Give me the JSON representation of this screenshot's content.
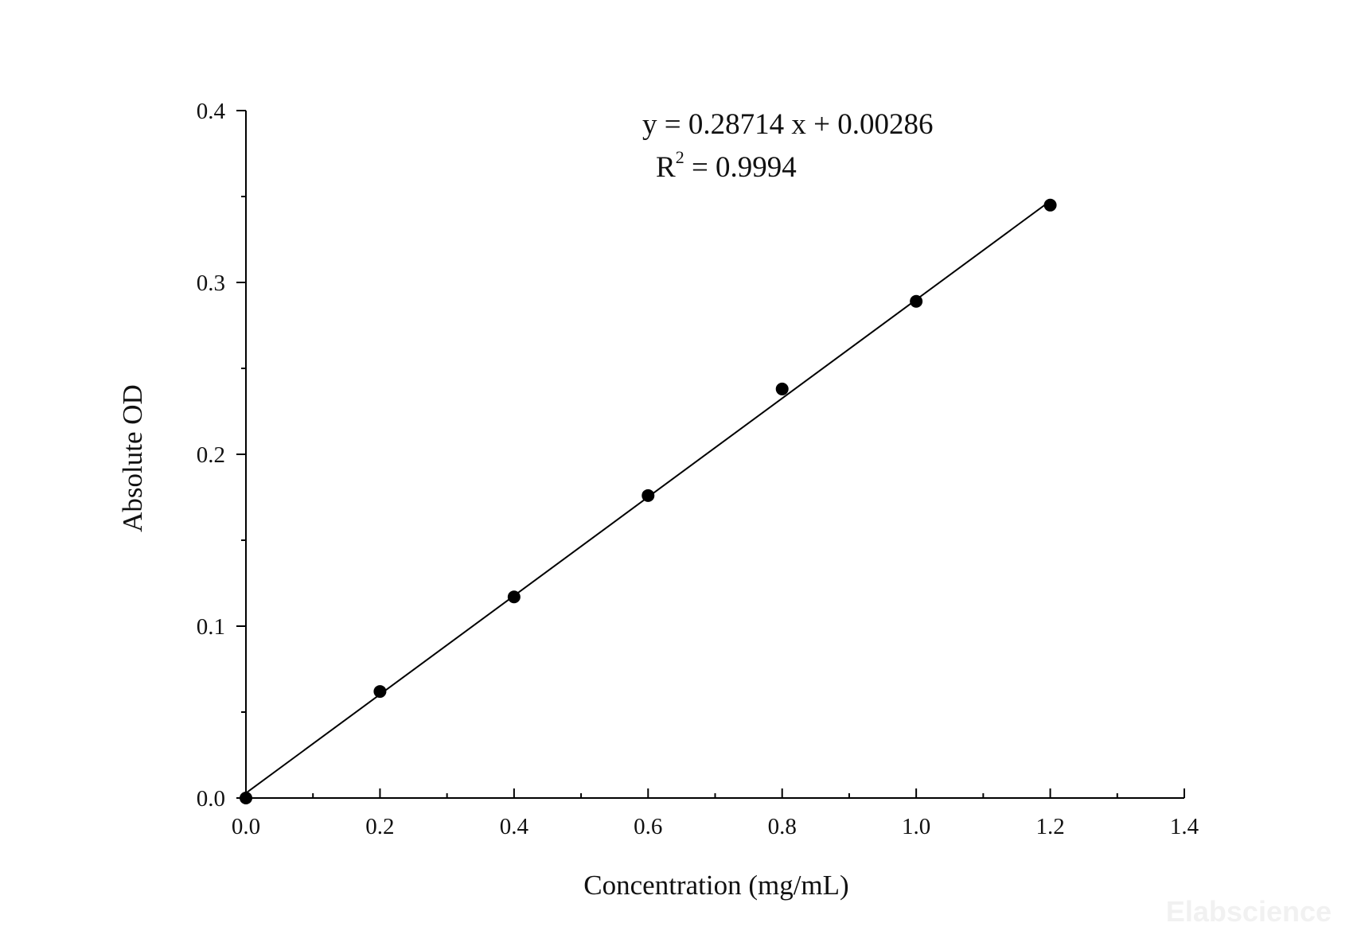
{
  "chart_data": {
    "type": "scatter",
    "title": "",
    "xlabel": "Concentration (mg/mL)",
    "ylabel": "Absolute OD",
    "xlim": [
      0.0,
      1.4
    ],
    "ylim": [
      0.0,
      0.4
    ],
    "xticks": [
      "0.0",
      "0.2",
      "0.4",
      "0.6",
      "0.8",
      "1.0",
      "1.2",
      "1.4"
    ],
    "yticks": [
      "0.0",
      "0.1",
      "0.2",
      "0.3",
      "0.4"
    ],
    "x_minor_step": 0.1,
    "y_minor_step": 0.05,
    "grid": false,
    "legend": "none",
    "colors": {
      "points": "#000000",
      "line": "#000000",
      "axes": "#000000"
    },
    "series": [
      {
        "x": [
          0.0,
          0.2,
          0.4,
          0.6,
          0.8,
          1.0,
          1.2
        ],
        "y": [
          0.0,
          0.062,
          0.117,
          0.176,
          0.238,
          0.289,
          0.345
        ]
      }
    ],
    "fit": {
      "type": "linear",
      "slope": 0.28714,
      "intercept": 0.00286,
      "x_range": [
        0.0,
        1.2
      ]
    },
    "annotations": {
      "equation": "y = 0.28714 x + 0.00286",
      "r2_prefix": "R",
      "r2_superscript": "2",
      "r2_value": " = 0.9994"
    }
  },
  "watermark": "Elabscience"
}
